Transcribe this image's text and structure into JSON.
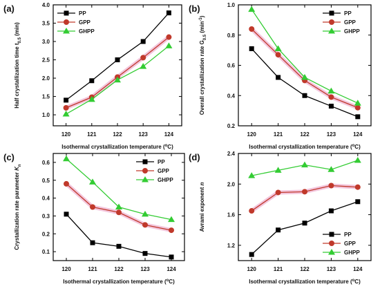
{
  "chart_data": [
    {
      "type": "line",
      "panel_label": "(a)",
      "ylabel_parts": [
        "Half crystallization time t",
        "0.5",
        " (min)"
      ],
      "xlabel_parts": [
        "Isothermal crystallization temperature (",
        "o",
        "C)"
      ],
      "categories": [
        "120",
        "121",
        "122",
        "123",
        "124"
      ],
      "y_ticks": [
        "1.0",
        "1.5",
        "2.0",
        "2.5",
        "3.0",
        "3.5",
        "4.0"
      ],
      "ylim": [
        0.7,
        4.0
      ],
      "legend_position": "top-left",
      "series": [
        {
          "name": "PP",
          "values": [
            1.4,
            1.93,
            2.5,
            3.0,
            3.78
          ],
          "color": "#000000",
          "marker": "square"
        },
        {
          "name": "GPP",
          "values": [
            1.19,
            1.48,
            2.03,
            2.56,
            3.12
          ],
          "color": "#c0392b",
          "marker": "circle"
        },
        {
          "name": "GHPP",
          "values": [
            1.02,
            1.42,
            1.95,
            2.32,
            2.88
          ],
          "color": "#33cc33",
          "marker": "triangle"
        }
      ]
    },
    {
      "type": "line",
      "panel_label": "(b)",
      "ylabel_parts": [
        "Overall crystallization rate G",
        "0.5",
        " (min",
        "-1",
        ")"
      ],
      "xlabel_parts": [
        "Isothermal crystallization temperature (",
        "o",
        "C)"
      ],
      "categories": [
        "120",
        "121",
        "122",
        "123",
        "124"
      ],
      "y_ticks": [
        "0.2",
        "0.4",
        "0.6",
        "0.8",
        "1.0"
      ],
      "ylim": [
        0.2,
        1.0
      ],
      "legend_position": "top-right",
      "series": [
        {
          "name": "PP",
          "values": [
            0.71,
            0.52,
            0.4,
            0.33,
            0.26
          ],
          "color": "#000000",
          "marker": "square"
        },
        {
          "name": "GPP",
          "values": [
            0.84,
            0.67,
            0.5,
            0.39,
            0.32
          ],
          "color": "#c0392b",
          "marker": "circle"
        },
        {
          "name": "GHPP",
          "values": [
            0.97,
            0.71,
            0.52,
            0.43,
            0.35
          ],
          "color": "#33cc33",
          "marker": "triangle"
        }
      ]
    },
    {
      "type": "line",
      "panel_label": "(c)",
      "ylabel_parts": [
        "Crystallization rate parameter ",
        "K",
        "n"
      ],
      "xlabel_parts": [
        "Isothermal crystallization temperature (",
        "o",
        "C)"
      ],
      "categories": [
        "120",
        "121",
        "122",
        "123",
        "124"
      ],
      "y_ticks": [
        "0.1",
        "0.2",
        "0.3",
        "0.4",
        "0.5",
        "0.6"
      ],
      "ylim": [
        0.05,
        0.65
      ],
      "legend_position": "top-right",
      "series": [
        {
          "name": "PP",
          "values": [
            0.31,
            0.15,
            0.13,
            0.09,
            0.07
          ],
          "color": "#000000",
          "marker": "square"
        },
        {
          "name": "GPP",
          "values": [
            0.48,
            0.35,
            0.32,
            0.25,
            0.22
          ],
          "color": "#c0392b",
          "marker": "circle"
        },
        {
          "name": "GHPP",
          "values": [
            0.62,
            0.49,
            0.35,
            0.31,
            0.28
          ],
          "color": "#33cc33",
          "marker": "triangle"
        }
      ]
    },
    {
      "type": "line",
      "panel_label": "(d)",
      "ylabel_parts": [
        "Avrami exponent ",
        "n"
      ],
      "xlabel_parts": [
        "Isothermal crystallization temperature (",
        "o",
        "C)"
      ],
      "categories": [
        "120",
        "121",
        "122",
        "123",
        "124"
      ],
      "y_ticks": [
        "1.2",
        "1.6",
        "2.0",
        "2.4"
      ],
      "ylim": [
        1.0,
        2.4
      ],
      "legend_position": "bottom-right",
      "series": [
        {
          "name": "PP",
          "values": [
            1.08,
            1.4,
            1.49,
            1.65,
            1.77
          ],
          "color": "#000000",
          "marker": "square"
        },
        {
          "name": "GPP",
          "values": [
            1.65,
            1.89,
            1.9,
            1.98,
            1.96
          ],
          "color": "#c0392b",
          "marker": "circle"
        },
        {
          "name": "GHPP",
          "values": [
            2.11,
            2.18,
            2.25,
            2.19,
            2.31
          ],
          "color": "#33cc33",
          "marker": "triangle"
        }
      ]
    }
  ]
}
